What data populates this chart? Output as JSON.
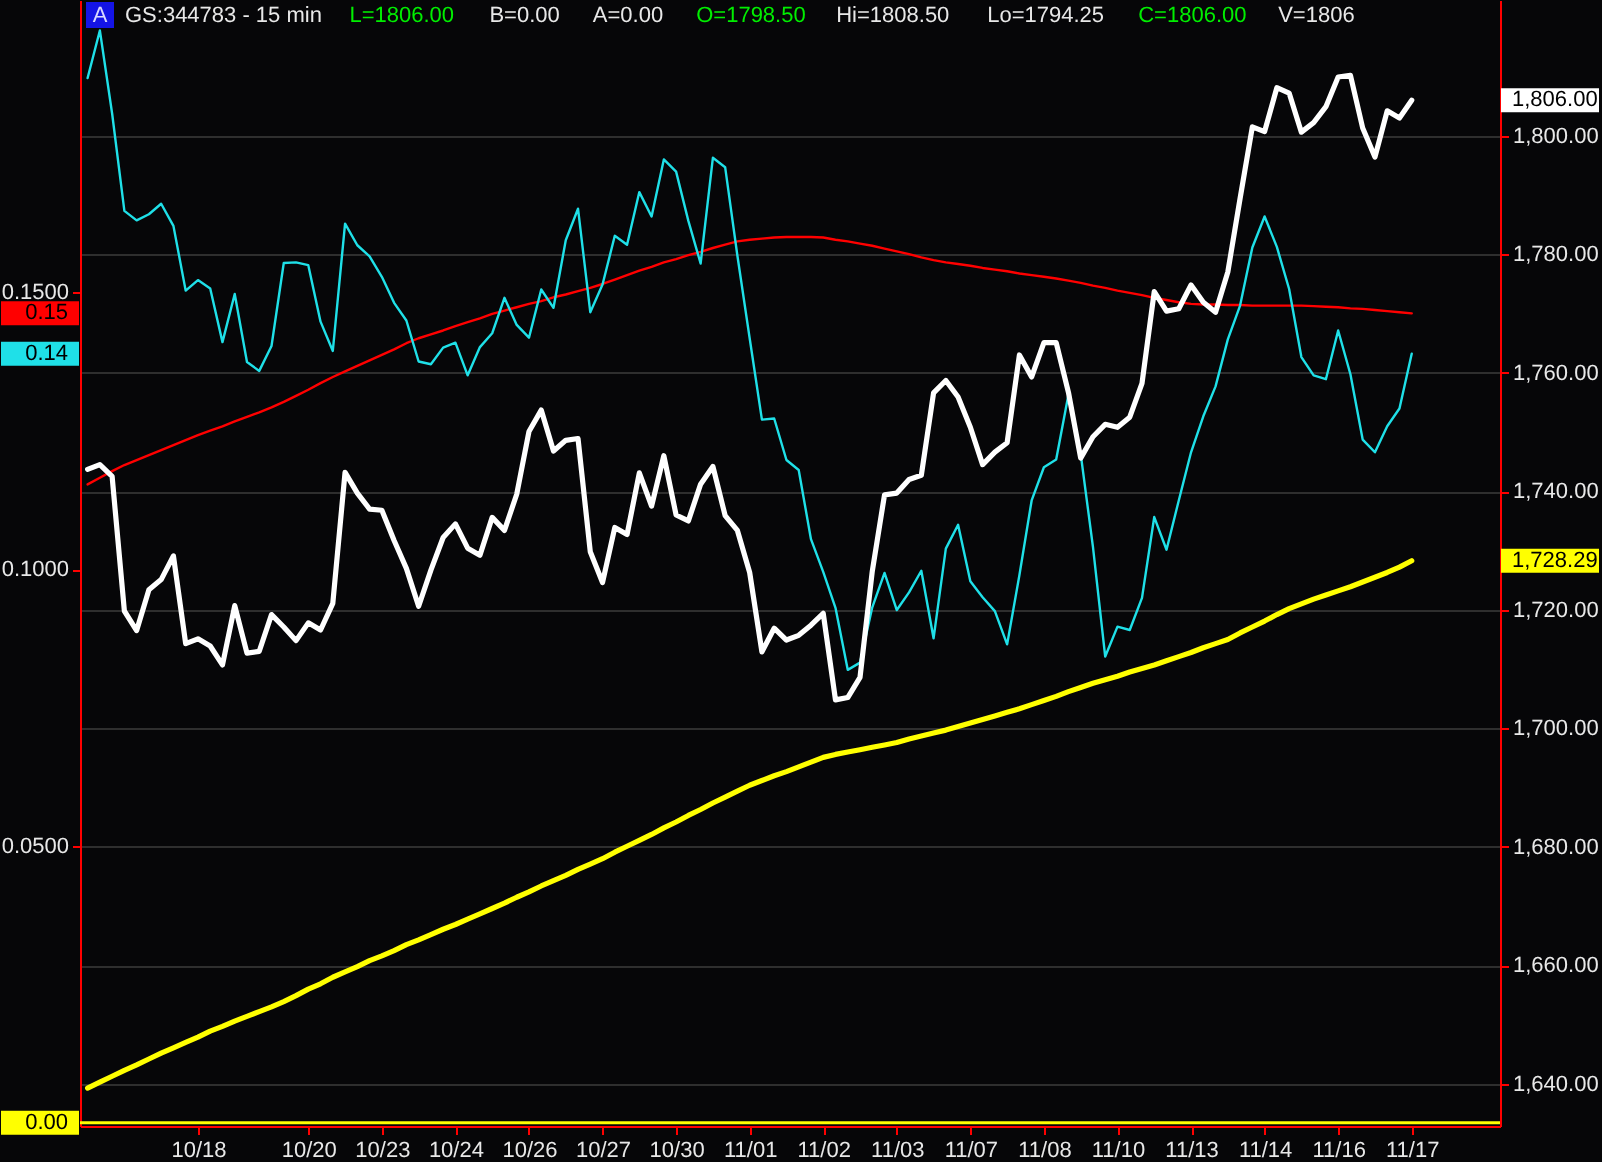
{
  "chart_data": {
    "type": "line",
    "title": "GS:344783 - 15 min",
    "annotations": [
      "A",
      "L=1806.00",
      "B=0.00",
      "A=0.00",
      "O=1798.50",
      "Hi=1808.50",
      "Lo=1794.25",
      "C=1806.00",
      "V=1806"
    ],
    "categories": [
      null,
      null,
      null,
      null,
      null,
      null,
      null,
      null,
      null,
      "10/18",
      null,
      null,
      null,
      null,
      null,
      null,
      null,
      null,
      "10/20",
      null,
      null,
      null,
      null,
      null,
      "10/23",
      null,
      null,
      null,
      null,
      null,
      "10/24",
      null,
      null,
      null,
      null,
      null,
      "10/26",
      null,
      null,
      null,
      null,
      null,
      "10/27",
      null,
      null,
      null,
      null,
      null,
      "10/30",
      null,
      null,
      null,
      null,
      null,
      "11/01",
      null,
      null,
      null,
      null,
      null,
      "11/02",
      null,
      null,
      null,
      null,
      null,
      "11/03",
      null,
      null,
      null,
      null,
      null,
      "11/07",
      null,
      null,
      null,
      null,
      null,
      "11/08",
      null,
      null,
      null,
      null,
      null,
      "11/10",
      null,
      null,
      null,
      null,
      null,
      "11/13",
      null,
      null,
      null,
      null,
      null,
      "11/14",
      null,
      null,
      null,
      null,
      null,
      "11/16",
      null,
      null,
      null,
      null,
      null,
      "11/17"
    ],
    "ylim": [
      -0.0006,
      0.2028
    ],
    "yticks": [
      {
        "value": 0.05,
        "label": "0.0500"
      },
      {
        "value": 0.1,
        "label": "0.1000"
      },
      {
        "value": 0.1389,
        "label": "0.14"
      },
      {
        "value": 0.1462,
        "label": "0.15"
      },
      {
        "value": 0.15,
        "label": "0.1500"
      }
    ],
    "y2lim": [
      1632.9,
      1822.9
    ],
    "y2ticks": [
      {
        "value": 1640,
        "label": "1,640.00"
      },
      {
        "value": 1660,
        "label": "1,660.00"
      },
      {
        "value": 1680,
        "label": "1,680.00"
      },
      {
        "value": 1700,
        "label": "1,700.00"
      },
      {
        "value": 1720,
        "label": "1,720.00"
      },
      {
        "value": 1728.29,
        "label": "1,728.29"
      },
      {
        "value": 1740,
        "label": "1,740.00"
      },
      {
        "value": 1760,
        "label": "1,760.00"
      },
      {
        "value": 1780,
        "label": "1,780.00"
      },
      {
        "value": 1800,
        "label": "1,800.00"
      },
      {
        "value": 1806,
        "label": "1,806.00"
      }
    ],
    "grid": true,
    "line_style": "solid",
    "ref_lines": [
      {
        "axis": "y",
        "value": 0,
        "label": "0.00",
        "color": "#ffff00"
      }
    ],
    "series": [
      {
        "color": "#ff0000",
        "values": [
          0.1153,
          0.1165,
          0.1177,
          0.1188,
          0.1197,
          0.1206,
          0.1215,
          0.1224,
          0.1233,
          0.1242,
          0.125,
          0.1258,
          0.1267,
          0.1275,
          0.1283,
          0.1292,
          0.1302,
          0.1313,
          0.1324,
          0.1336,
          0.1347,
          0.1357,
          0.1367,
          0.1377,
          0.1387,
          0.1397,
          0.1408,
          0.1417,
          0.1424,
          0.1431,
          0.1439,
          0.1446,
          0.1453,
          0.1461,
          0.1467,
          0.1473,
          0.1479,
          0.1484,
          0.1491,
          0.1496,
          0.1502,
          0.1508,
          0.1515,
          0.1523,
          0.1531,
          0.1539,
          0.1546,
          0.1554,
          0.156,
          0.1567,
          0.1573,
          0.158,
          0.1586,
          0.1592,
          0.1595,
          0.1597,
          0.1599,
          0.16,
          0.16,
          0.16,
          0.1599,
          0.1595,
          0.1592,
          0.1588,
          0.1584,
          0.1579,
          0.1574,
          0.1569,
          0.1563,
          0.1558,
          0.1554,
          0.1551,
          0.1548,
          0.1544,
          0.1541,
          0.1538,
          0.1534,
          0.1531,
          0.1528,
          0.1525,
          0.1521,
          0.1517,
          0.1512,
          0.1508,
          0.1503,
          0.1499,
          0.1495,
          0.149,
          0.1486,
          0.1482,
          0.1479,
          0.1478,
          0.1478,
          0.1477,
          0.1477,
          0.1476,
          0.1476,
          0.1476,
          0.1476,
          0.1476,
          0.1475,
          0.1474,
          0.1473,
          0.1471,
          0.147,
          0.1468,
          0.1466,
          0.1464,
          0.1462
        ]
      },
      {
        "color": "#1fe0e8",
        "values": [
          0.1887,
          0.1973,
          0.1823,
          0.1647,
          0.163,
          0.1641,
          0.166,
          0.162,
          0.1503,
          0.1522,
          0.1507,
          0.141,
          0.1497,
          0.1374,
          0.1358,
          0.1403,
          0.1553,
          0.1554,
          0.1549,
          0.1447,
          0.1394,
          0.1624,
          0.1585,
          0.1565,
          0.1528,
          0.1481,
          0.1449,
          0.1375,
          0.137,
          0.14,
          0.1409,
          0.135,
          0.1401,
          0.1426,
          0.149,
          0.1441,
          0.1418,
          0.1505,
          0.1472,
          0.1594,
          0.1651,
          0.1464,
          0.1514,
          0.1602,
          0.1586,
          0.1681,
          0.1637,
          0.174,
          0.1718,
          0.1629,
          0.1552,
          0.1743,
          0.1726,
          0.1566,
          0.1417,
          0.127,
          0.1272,
          0.1197,
          0.1179,
          0.1054,
          0.0995,
          0.093,
          0.0818,
          0.0831,
          0.0931,
          0.0993,
          0.0926,
          0.0958,
          0.0997,
          0.0875,
          0.1037,
          0.108,
          0.0978,
          0.0949,
          0.0924,
          0.0864,
          0.0989,
          0.1124,
          0.1184,
          0.1198,
          0.1315,
          0.1208,
          0.104,
          0.0842,
          0.0896,
          0.089,
          0.0948,
          0.1094,
          0.1035,
          0.1124,
          0.1211,
          0.1276,
          0.133,
          0.1415,
          0.1476,
          0.1581,
          0.1637,
          0.1582,
          0.1506,
          0.1383,
          0.135,
          0.1343,
          0.1431,
          0.1352,
          0.1234,
          0.1211,
          0.1258,
          0.129,
          0.1389
        ]
      },
      {
        "color": "#ffff00",
        "axis": "y2",
        "values": [
          1639.3,
          1640.3,
          1641.3,
          1642.3,
          1643.2,
          1644.2,
          1645.2,
          1646.1,
          1647.0,
          1647.9,
          1648.9,
          1649.7,
          1650.6,
          1651.4,
          1652.2,
          1653.0,
          1653.9,
          1654.9,
          1656.0,
          1656.9,
          1658.0,
          1658.9,
          1659.8,
          1660.8,
          1661.6,
          1662.5,
          1663.5,
          1664.3,
          1665.2,
          1666.1,
          1666.9,
          1667.8,
          1668.7,
          1669.6,
          1670.5,
          1671.5,
          1672.4,
          1673.4,
          1674.3,
          1675.2,
          1676.2,
          1677.1,
          1678.0,
          1679.1,
          1680.1,
          1681.1,
          1682.1,
          1683.2,
          1684.2,
          1685.3,
          1686.3,
          1687.4,
          1688.4,
          1689.4,
          1690.4,
          1691.2,
          1692.0,
          1692.7,
          1693.5,
          1694.3,
          1695.1,
          1695.6,
          1696.0,
          1696.4,
          1696.8,
          1697.2,
          1697.6,
          1698.2,
          1698.7,
          1699.2,
          1699.7,
          1700.3,
          1700.9,
          1701.5,
          1702.1,
          1702.7,
          1703.3,
          1704.0,
          1704.7,
          1705.4,
          1706.2,
          1706.9,
          1707.6,
          1708.2,
          1708.8,
          1709.5,
          1710.1,
          1710.7,
          1711.4,
          1712.1,
          1712.8,
          1713.6,
          1714.3,
          1715.0,
          1716.1,
          1717.1,
          1718.1,
          1719.2,
          1720.2,
          1721.0,
          1721.8,
          1722.5,
          1723.2,
          1723.9,
          1724.7,
          1725.5,
          1726.3,
          1727.2,
          1728.29
        ]
      },
      {
        "color": "#ffffff",
        "axis": "y2",
        "values": [
          1743.7,
          1744.5,
          1742.5,
          1719.8,
          1716.5,
          1723.4,
          1725.1,
          1729.1,
          1714.3,
          1715.1,
          1713.9,
          1710.7,
          1720.7,
          1712.7,
          1713.0,
          1719.2,
          1717.1,
          1714.8,
          1717.8,
          1716.6,
          1721.1,
          1743.2,
          1739.7,
          1737.0,
          1736.8,
          1731.7,
          1727.0,
          1720.6,
          1726.7,
          1732.2,
          1734.5,
          1730.4,
          1729.2,
          1735.6,
          1733.4,
          1739.5,
          1750.1,
          1753.7,
          1746.8,
          1748.6,
          1748.9,
          1729.8,
          1724.6,
          1733.9,
          1732.7,
          1743.1,
          1737.5,
          1746.0,
          1736.0,
          1735.0,
          1741.2,
          1744.2,
          1735.9,
          1733.4,
          1726.3,
          1712.9,
          1716.9,
          1714.9,
          1715.7,
          1717.4,
          1719.4,
          1704.8,
          1705.2,
          1708.6,
          1726.5,
          1739.4,
          1739.7,
          1742.0,
          1742.7,
          1756.6,
          1758.7,
          1755.9,
          1750.8,
          1744.5,
          1746.6,
          1748.2,
          1763.0,
          1759.3,
          1765.1,
          1765.1,
          1756.7,
          1745.6,
          1749.2,
          1751.3,
          1750.8,
          1752.5,
          1758.2,
          1773.7,
          1770.4,
          1770.8,
          1774.8,
          1771.9,
          1770.2,
          1777.0,
          1789.4,
          1801.5,
          1800.7,
          1808.1,
          1807.2,
          1800.6,
          1802.2,
          1804.9,
          1809.9,
          1810.2,
          1801.3,
          1796.4,
          1804.2,
          1803.0,
          1806.0
        ]
      }
    ]
  }
}
